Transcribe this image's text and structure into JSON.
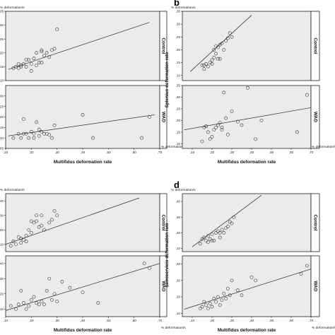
{
  "chart_data": [
    {
      "id": "a",
      "type": "scatter",
      "panel_letter": "",
      "xlabel": "Multifidus deformation rate",
      "x_unit": "% deformation/s",
      "ylabel": "",
      "y_unit": "% deformation/s",
      "xlim": [
        0.1,
        0.7
      ],
      "x_ticks": [
        ",10",
        ",20",
        ",30",
        ",40",
        ",50",
        ",60",
        ",70"
      ],
      "facets": [
        {
          "label": "Control",
          "ylim": [
            0.1,
            0.35
          ],
          "y_ticks": [
            ",35",
            ",30",
            ",25",
            ",20",
            ",15",
            ",10"
          ],
          "points": [
            [
              0.13,
              0.145
            ],
            [
              0.14,
              0.15
            ],
            [
              0.15,
              0.16
            ],
            [
              0.15,
              0.145
            ],
            [
              0.16,
              0.15
            ],
            [
              0.18,
              0.15
            ],
            [
              0.17,
              0.16
            ],
            [
              0.19,
              0.175
            ],
            [
              0.2,
              0.16
            ],
            [
              0.21,
              0.18
            ],
            [
              0.22,
              0.2
            ],
            [
              0.23,
              0.165
            ],
            [
              0.24,
              0.205
            ],
            [
              0.25,
              0.19
            ],
            [
              0.27,
              0.185
            ],
            [
              0.26,
              0.2
            ],
            [
              0.28,
              0.21
            ],
            [
              0.29,
              0.215
            ],
            [
              0.24,
              0.165
            ],
            [
              0.3,
              0.285
            ],
            [
              0.22,
              0.155
            ],
            [
              0.18,
              0.175
            ],
            [
              0.24,
              0.21
            ],
            [
              0.16,
              0.155
            ],
            [
              0.2,
              0.135
            ]
          ],
          "fit": [
            [
              0.11,
              0.14
            ],
            [
              0.66,
              0.31
            ]
          ]
        },
        {
          "label": "WAD",
          "ylim": [
            0.05,
            0.35
          ],
          "y_ticks": [
            ",30",
            ",25",
            ",20",
            ",15",
            ",10",
            ",05"
          ],
          "points": [
            [
              0.13,
              0.1
            ],
            [
              0.15,
              0.12
            ],
            [
              0.16,
              0.1
            ],
            [
              0.17,
              0.12
            ],
            [
              0.17,
              0.19
            ],
            [
              0.18,
              0.12
            ],
            [
              0.19,
              0.1
            ],
            [
              0.2,
              0.13
            ],
            [
              0.21,
              0.1
            ],
            [
              0.22,
              0.175
            ],
            [
              0.23,
              0.14
            ],
            [
              0.24,
              0.13
            ],
            [
              0.25,
              0.12
            ],
            [
              0.26,
              0.12
            ],
            [
              0.27,
              0.115
            ],
            [
              0.28,
              0.1
            ],
            [
              0.29,
              0.16
            ],
            [
              0.23,
              0.11
            ],
            [
              0.21,
              0.12
            ],
            [
              0.4,
              0.21
            ],
            [
              0.44,
              0.1
            ],
            [
              0.63,
              0.1
            ],
            [
              0.66,
              0.2
            ]
          ],
          "fit": [
            [
              0.11,
              0.11
            ],
            [
              0.68,
              0.21
            ]
          ]
        }
      ]
    },
    {
      "id": "b",
      "type": "scatter",
      "panel_letter": "b",
      "xlabel": "Multifidus deformation rate",
      "x_unit": "% deformation/s",
      "ylabel": "Splenius deformation rate",
      "y_unit": "% deformation/s",
      "xlim": [
        0.05,
        0.7
      ],
      "x_ticks": [
        ",10",
        ",20",
        ",30",
        ",40",
        ",50",
        ",60",
        ",70"
      ],
      "facets": [
        {
          "label": "Control",
          "ylim": [
            0.08,
            0.35
          ],
          "y_ticks": [
            ",35",
            ",30",
            ",25",
            ",20",
            ",15",
            ",10"
          ],
          "points": [
            [
              0.15,
              0.14
            ],
            [
              0.16,
              0.14
            ],
            [
              0.16,
              0.125
            ],
            [
              0.17,
              0.145
            ],
            [
              0.18,
              0.135
            ],
            [
              0.19,
              0.15
            ],
            [
              0.2,
              0.16
            ],
            [
              0.21,
              0.17
            ],
            [
              0.21,
              0.2
            ],
            [
              0.22,
              0.185
            ],
            [
              0.23,
              0.21
            ],
            [
              0.23,
              0.165
            ],
            [
              0.24,
              0.22
            ],
            [
              0.25,
              0.225
            ],
            [
              0.26,
              0.2
            ],
            [
              0.27,
              0.235
            ],
            [
              0.28,
              0.245
            ],
            [
              0.29,
              0.265
            ],
            [
              0.3,
              0.25
            ],
            [
              0.24,
              0.165
            ],
            [
              0.22,
              0.215
            ],
            [
              0.2,
              0.145
            ]
          ],
          "fit": [
            [
              0.09,
              0.115
            ],
            [
              0.4,
              0.335
            ]
          ]
        },
        {
          "label": "WAD",
          "ylim": [
            0.08,
            0.35
          ],
          "y_ticks": [
            ",35",
            ",30",
            ",25",
            ",20",
            ",15",
            ",10"
          ],
          "points": [
            [
              0.15,
              0.11
            ],
            [
              0.16,
              0.17
            ],
            [
              0.17,
              0.175
            ],
            [
              0.18,
              0.15
            ],
            [
              0.19,
              0.12
            ],
            [
              0.2,
              0.13
            ],
            [
              0.21,
              0.16
            ],
            [
              0.22,
              0.17
            ],
            [
              0.23,
              0.18
            ],
            [
              0.24,
              0.19
            ],
            [
              0.25,
              0.17
            ],
            [
              0.25,
              0.16
            ],
            [
              0.26,
              0.32
            ],
            [
              0.27,
              0.21
            ],
            [
              0.28,
              0.14
            ],
            [
              0.3,
              0.24
            ],
            [
              0.33,
              0.195
            ],
            [
              0.35,
              0.18
            ],
            [
              0.38,
              0.34
            ],
            [
              0.42,
              0.12
            ],
            [
              0.45,
              0.2
            ],
            [
              0.63,
              0.15
            ],
            [
              0.68,
              0.31
            ]
          ],
          "fit": [
            [
              0.06,
              0.16
            ],
            [
              0.7,
              0.255
            ]
          ]
        }
      ]
    },
    {
      "id": "c",
      "type": "scatter",
      "panel_letter": "",
      "xlabel": "Multifidus deformation rate",
      "x_unit": "% deformation/s",
      "ylabel": "",
      "y_unit": "% deformation/s",
      "xlim": [
        0.1,
        0.7
      ],
      "x_ticks": [
        ",10",
        ",20",
        ",30",
        ",40",
        ",50",
        ",60",
        ",70"
      ],
      "facets": [
        {
          "label": "Control",
          "ylim": [
            0.05,
            0.45
          ],
          "y_ticks": [
            ",40",
            ",30",
            ",20",
            ",10"
          ],
          "points": [
            [
              0.13,
              0.12
            ],
            [
              0.14,
              0.1
            ],
            [
              0.15,
              0.15
            ],
            [
              0.16,
              0.14
            ],
            [
              0.17,
              0.13
            ],
            [
              0.18,
              0.16
            ],
            [
              0.18,
              0.12
            ],
            [
              0.19,
              0.2
            ],
            [
              0.2,
              0.18
            ],
            [
              0.21,
              0.25
            ],
            [
              0.22,
              0.26
            ],
            [
              0.22,
              0.3
            ],
            [
              0.23,
              0.22
            ],
            [
              0.24,
              0.23
            ],
            [
              0.25,
              0.2
            ],
            [
              0.27,
              0.25
            ],
            [
              0.28,
              0.27
            ],
            [
              0.29,
              0.33
            ],
            [
              0.3,
              0.3
            ],
            [
              0.24,
              0.3
            ],
            [
              0.2,
              0.26
            ],
            [
              0.16,
              0.11
            ],
            [
              0.12,
              0.09
            ]
          ],
          "fit": [
            [
              0.1,
              0.1
            ],
            [
              0.62,
              0.42
            ]
          ]
        },
        {
          "label": "WAD",
          "ylim": [
            0.05,
            0.45
          ],
          "y_ticks": [
            ",40",
            ",30",
            ",20",
            ",10"
          ],
          "points": [
            [
              0.12,
              0.12
            ],
            [
              0.14,
              0.1
            ],
            [
              0.15,
              0.13
            ],
            [
              0.16,
              0.22
            ],
            [
              0.17,
              0.14
            ],
            [
              0.18,
              0.1
            ],
            [
              0.19,
              0.12
            ],
            [
              0.2,
              0.16
            ],
            [
              0.21,
              0.18
            ],
            [
              0.22,
              0.14
            ],
            [
              0.23,
              0.13
            ],
            [
              0.24,
              0.15
            ],
            [
              0.25,
              0.13
            ],
            [
              0.26,
              0.22
            ],
            [
              0.27,
              0.3
            ],
            [
              0.28,
              0.16
            ],
            [
              0.29,
              0.2
            ],
            [
              0.3,
              0.15
            ],
            [
              0.32,
              0.28
            ],
            [
              0.35,
              0.24
            ],
            [
              0.4,
              0.21
            ],
            [
              0.46,
              0.14
            ],
            [
              0.64,
              0.4
            ],
            [
              0.66,
              0.37
            ]
          ],
          "fit": [
            [
              0.1,
              0.09
            ],
            [
              0.7,
              0.4
            ]
          ]
        }
      ]
    },
    {
      "id": "d",
      "type": "scatter",
      "panel_letter": "d",
      "xlabel": "Multifidus deformation rate",
      "x_unit": "% deformation/s",
      "ylabel": "Semicervicis deformation rate",
      "y_unit": "% deformation/s",
      "xlim": [
        0.05,
        0.7
      ],
      "x_ticks": [
        ",10",
        ",20",
        ",30",
        ",40",
        ",50",
        ",60",
        ",70"
      ],
      "facets": [
        {
          "label": "Control",
          "ylim": [
            0.08,
            0.45
          ],
          "y_ticks": [
            ",40",
            ",30",
            ",20",
            ",10"
          ],
          "points": [
            [
              0.14,
              0.13
            ],
            [
              0.15,
              0.16
            ],
            [
              0.16,
              0.17
            ],
            [
              0.17,
              0.15
            ],
            [
              0.18,
              0.18
            ],
            [
              0.19,
              0.16
            ],
            [
              0.2,
              0.19
            ],
            [
              0.21,
              0.15
            ],
            [
              0.22,
              0.2
            ],
            [
              0.23,
              0.21
            ],
            [
              0.24,
              0.17
            ],
            [
              0.25,
              0.22
            ],
            [
              0.26,
              0.2
            ],
            [
              0.27,
              0.23
            ],
            [
              0.28,
              0.24
            ],
            [
              0.29,
              0.27
            ],
            [
              0.3,
              0.26
            ],
            [
              0.31,
              0.3
            ],
            [
              0.2,
              0.15
            ],
            [
              0.18,
              0.14
            ],
            [
              0.24,
              0.2
            ]
          ],
          "fit": [
            [
              0.1,
              0.11
            ],
            [
              0.45,
              0.44
            ]
          ]
        },
        {
          "label": "WAD",
          "ylim": [
            0.08,
            0.45
          ],
          "y_ticks": [
            ",40",
            ",30",
            ",20",
            ",10"
          ],
          "points": [
            [
              0.14,
              0.13
            ],
            [
              0.15,
              0.14
            ],
            [
              0.16,
              0.17
            ],
            [
              0.17,
              0.15
            ],
            [
              0.18,
              0.13
            ],
            [
              0.19,
              0.16
            ],
            [
              0.2,
              0.14
            ],
            [
              0.21,
              0.19
            ],
            [
              0.22,
              0.17
            ],
            [
              0.23,
              0.2
            ],
            [
              0.24,
              0.15
            ],
            [
              0.25,
              0.18
            ],
            [
              0.26,
              0.22
            ],
            [
              0.27,
              0.19
            ],
            [
              0.28,
              0.25
            ],
            [
              0.29,
              0.21
            ],
            [
              0.3,
              0.3
            ],
            [
              0.33,
              0.24
            ],
            [
              0.35,
              0.21
            ],
            [
              0.4,
              0.32
            ],
            [
              0.42,
              0.3
            ],
            [
              0.65,
              0.34
            ],
            [
              0.68,
              0.39
            ]
          ],
          "fit": [
            [
              0.06,
              0.125
            ],
            [
              0.7,
              0.37
            ]
          ]
        }
      ]
    }
  ]
}
